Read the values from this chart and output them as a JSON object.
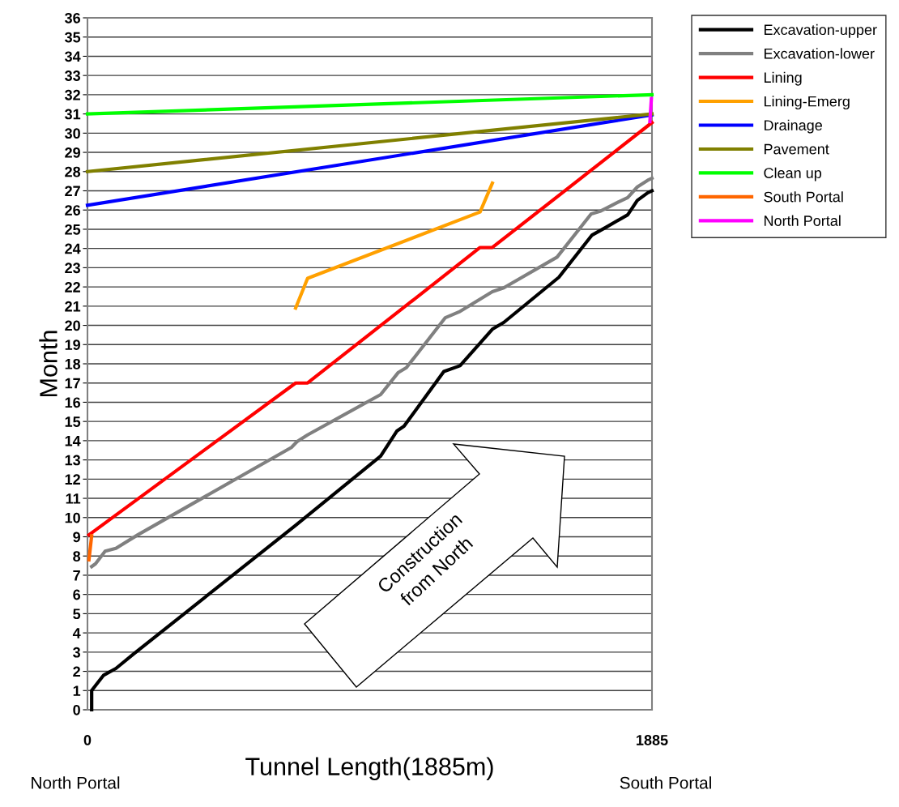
{
  "chart_data": {
    "type": "line",
    "xlabel": "Tunnel Length(1885m)",
    "ylabel": "Month",
    "xlim": [
      0,
      1885
    ],
    "xticks": [
      0,
      1885
    ],
    "ylim": [
      0,
      36
    ],
    "yticks": [
      0,
      1,
      2,
      3,
      4,
      5,
      6,
      7,
      8,
      9,
      10,
      11,
      12,
      13,
      14,
      15,
      16,
      17,
      18,
      19,
      20,
      21,
      22,
      23,
      24,
      25,
      26,
      27,
      28,
      29,
      30,
      31,
      32,
      33,
      34,
      35,
      36
    ],
    "grid": "y",
    "legend": "top right",
    "marker": "none",
    "line_style": "solid",
    "annotations": [
      "North Portal",
      "South Portal",
      "Construction\nfrom North"
    ],
    "series": [
      {
        "name": "Excavation-upper",
        "color": "#000000",
        "x": [
          14,
          14,
          54,
          95,
          154,
          695,
          979,
          1033,
          1057,
          1190,
          1244,
          1352,
          1390,
          1574,
          1685,
          1731,
          1804,
          1836,
          1871,
          1885
        ],
        "values": [
          0,
          1.0,
          1.8,
          2.15,
          2.9,
          9.6,
          13.2,
          14.5,
          14.75,
          17.6,
          17.9,
          19.8,
          20.15,
          22.5,
          24.7,
          25.1,
          25.75,
          26.5,
          26.9,
          27.0
        ]
      },
      {
        "name": "Excavation-lower",
        "color": "#808080",
        "x": [
          14,
          27,
          59,
          95,
          168,
          681,
          700,
          735,
          979,
          1038,
          1065,
          1195,
          1241,
          1352,
          1390,
          1568,
          1682,
          1714,
          1771,
          1804,
          1836,
          1871,
          1885
        ],
        "values": [
          7.45,
          7.6,
          8.25,
          8.4,
          9.1,
          13.65,
          13.95,
          14.3,
          16.4,
          17.55,
          17.8,
          20.4,
          20.7,
          21.75,
          21.95,
          23.55,
          25.8,
          25.95,
          26.4,
          26.65,
          27.2,
          27.55,
          27.65
        ]
      },
      {
        "name": "Lining",
        "color": "#ff0000",
        "x": [
          5,
          695,
          735,
          1311,
          1352,
          1885
        ],
        "values": [
          9.1,
          17.0,
          17.0,
          24.05,
          24.05,
          30.55
        ]
      },
      {
        "name": "Lining-Emerg",
        "color": "#ffa000",
        "x": [
          695,
          735,
          1311,
          1352
        ],
        "values": [
          20.9,
          22.45,
          25.9,
          27.4
        ]
      },
      {
        "name": "Drainage",
        "color": "#0000ff",
        "x": [
          0,
          1885
        ],
        "values": [
          26.25,
          30.95
        ]
      },
      {
        "name": "Pavement",
        "color": "#808000",
        "x": [
          0,
          1885
        ],
        "values": [
          28.0,
          31.0
        ]
      },
      {
        "name": "Clean up",
        "color": "#00ff00",
        "x": [
          0,
          1885
        ],
        "values": [
          31.0,
          32.0
        ]
      },
      {
        "name": "South Portal",
        "color": "#ff6600",
        "x": [
          5,
          14
        ],
        "values": [
          7.8,
          9.05
        ]
      },
      {
        "name": "North Portal",
        "color": "#ff00ff",
        "x": [
          1878,
          1883
        ],
        "values": [
          30.6,
          31.8
        ]
      }
    ]
  }
}
